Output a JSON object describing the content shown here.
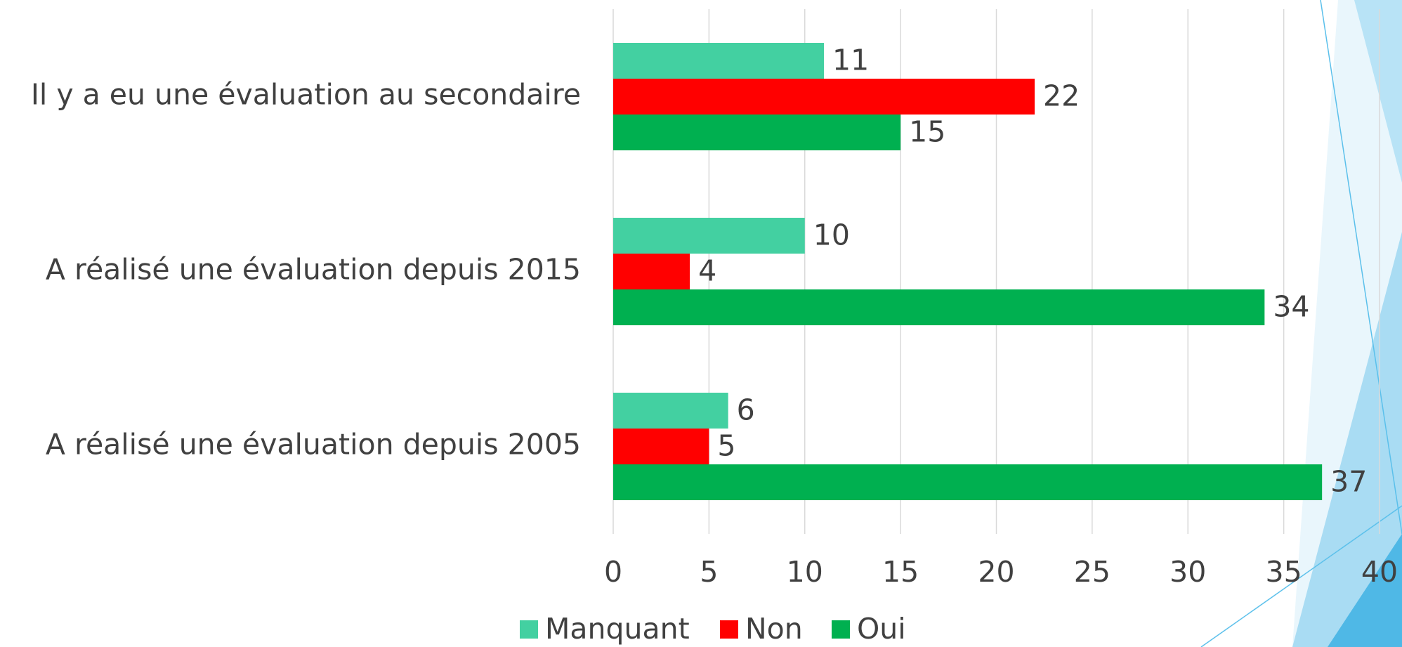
{
  "chart_data": {
    "type": "barh",
    "categories": [
      "Il y a eu une évaluation au secondaire",
      "A réalisé une évaluation depuis 2015",
      "A réalisé une évaluation depuis 2005"
    ],
    "series": [
      {
        "name": "Manquant",
        "color": "#43d0a1",
        "values": [
          11,
          10,
          6
        ]
      },
      {
        "name": "Non",
        "color": "#ff0000",
        "values": [
          22,
          4,
          5
        ]
      },
      {
        "name": "Oui",
        "color": "#00b050",
        "values": [
          15,
          34,
          37
        ]
      }
    ],
    "xlim": [
      0,
      40
    ],
    "xticks": [
      0,
      5,
      10,
      15,
      20,
      25,
      30,
      35,
      40
    ],
    "grid": true,
    "legend": "bottom"
  }
}
